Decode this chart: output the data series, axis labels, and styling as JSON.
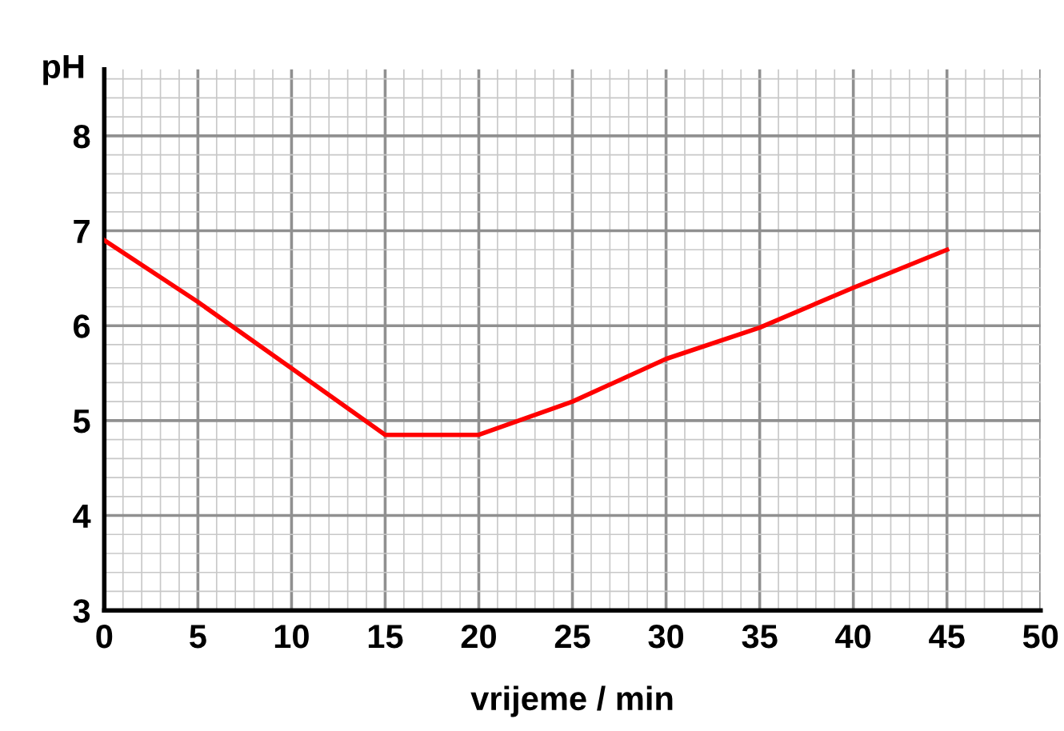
{
  "chart_data": {
    "type": "line",
    "xlabel": "vrijeme / min",
    "ylabel": "pH",
    "x": [
      0,
      5,
      10,
      15,
      20,
      25,
      30,
      35,
      40,
      45
    ],
    "series": [
      {
        "color": "#ff0000",
        "values": [
          6.9,
          6.25,
          5.55,
          4.85,
          4.85,
          5.2,
          5.65,
          5.98,
          6.4,
          6.8
        ]
      }
    ],
    "xlim": [
      0,
      50
    ],
    "ylim": [
      3,
      8.7
    ],
    "xticks": [
      0,
      5,
      10,
      15,
      20,
      25,
      30,
      35,
      40,
      45,
      50
    ],
    "yticks": [
      3,
      4,
      5,
      6,
      7,
      8
    ],
    "grid": true,
    "marker": "none",
    "line_style": "solid",
    "legend": false
  }
}
